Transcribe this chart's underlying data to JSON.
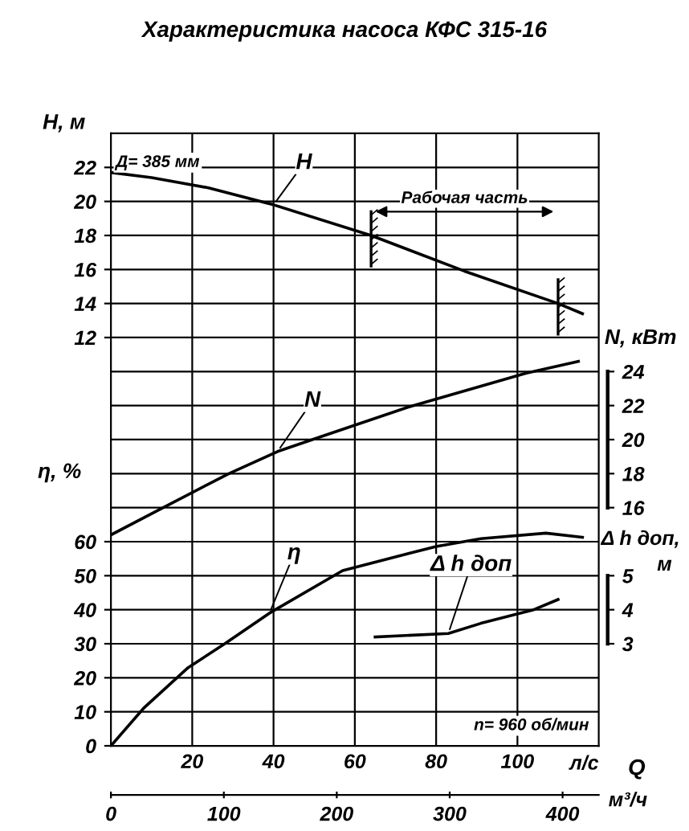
{
  "chart_data": [
    {
      "type": "line",
      "title": "Характеристика насоса КФС 315-16",
      "xlabel": "л/с",
      "x2label": "м³/ч",
      "ylabel": "H, м",
      "y2label": "N, кВт",
      "y3label": "η, %",
      "xlim": [
        0,
        120
      ],
      "xticks": [
        20,
        40,
        60,
        80,
        100
      ],
      "x2lim": [
        0,
        432
      ],
      "x2ticks": [
        0,
        100,
        200,
        300,
        400
      ],
      "ylim": [
        -12,
        24
      ],
      "yticks": [
        12,
        14,
        16,
        18,
        20,
        22
      ],
      "y2lim": [
        2,
        38
      ],
      "y2ticks": [
        16,
        18,
        20,
        22,
        24
      ],
      "y3lim": [
        0,
        180
      ],
      "y3ticks": [
        0,
        10,
        20,
        30,
        40,
        50,
        60
      ],
      "grid": true,
      "line_style": "solid",
      "series": [
        {
          "name": "H",
          "color": "#000000",
          "x": [
            0,
            10,
            24,
            40,
            64,
            87,
            110,
            116
          ],
          "values": [
            21.7,
            21.4,
            20.8,
            19.8,
            18.0,
            15.9,
            14.0,
            13.4
          ]
        },
        {
          "name": "N",
          "color": "#000000",
          "axis": "y2",
          "x": [
            0,
            12,
            29,
            41,
            52,
            73,
            102,
            115
          ],
          "values": [
            14.4,
            15.9,
            18.0,
            19.3,
            20.2,
            21.9,
            23.9,
            24.6
          ]
        },
        {
          "name": "η",
          "color": "#000000",
          "axis": "y3",
          "x": [
            0,
            8,
            19,
            28,
            39,
            57,
            80,
            91,
            107,
            116
          ],
          "values": [
            0,
            11,
            23,
            30,
            39,
            51.5,
            58.6,
            60.9,
            62.5,
            61.3
          ]
        }
      ],
      "ref_lines": [
        {
          "axis": "x",
          "value": 64,
          "color": "#000000"
        },
        {
          "axis": "x",
          "value": 110,
          "color": "#000000"
        }
      ],
      "annotations": [
        "Д= 385 мм",
        "Рабочая часть",
        "n= 960 об/мин",
        "Q"
      ]
    },
    {
      "type": "line",
      "ylabel": "Δ h доп, м",
      "xlim": [
        0,
        120
      ],
      "ylim": [
        0,
        18
      ],
      "yticks": [
        3,
        4,
        5
      ],
      "tick_labels": "y",
      "line_style": "solid",
      "series": [
        {
          "name": "Δ h доп",
          "color": "#000000",
          "x": [
            65,
            83,
            91,
            104,
            110
          ],
          "values": [
            3.2,
            3.3,
            3.6,
            4.0,
            4.3
          ]
        }
      ]
    }
  ]
}
